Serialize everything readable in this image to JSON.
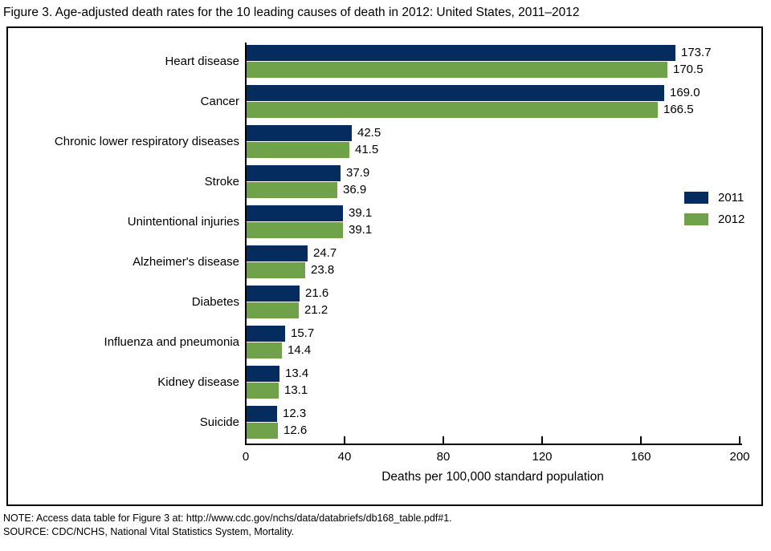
{
  "figure": {
    "title": "Figure 3. Age-adjusted death rates for the 10 leading causes of death in 2012: United States, 2011–2012",
    "note": "NOTE: Access data table for Figure 3 at: http://www.cdc.gov/nchs/data/databriefs/db168_table.pdf#1.",
    "source": "SOURCE: CDC/NCHS, National Vital Statistics System, Mortality."
  },
  "chart_data": {
    "type": "bar",
    "orientation": "horizontal",
    "title": "Figure 3. Age-adjusted death rates for the 10 leading causes of death in 2012: United States, 2011–2012",
    "categories": [
      "Heart disease",
      "Cancer",
      "Chronic lower respiratory diseases",
      "Stroke",
      "Unintentional injuries",
      "Alzheimer's disease",
      "Diabetes",
      "Influenza and pneumonia",
      "Kidney disease",
      "Suicide"
    ],
    "series": [
      {
        "name": "2011",
        "color": "#042c5e",
        "values": [
          173.7,
          169.0,
          42.5,
          37.9,
          39.1,
          24.7,
          21.6,
          15.7,
          13.4,
          12.3
        ]
      },
      {
        "name": "2012",
        "color": "#6fa24a",
        "values": [
          170.5,
          166.5,
          41.5,
          36.9,
          39.1,
          23.8,
          21.2,
          14.4,
          13.1,
          12.6
        ]
      }
    ],
    "xlabel": "Deaths per 100,000 standard population",
    "ylabel": "",
    "x_ticks": [
      0,
      40,
      80,
      120,
      160,
      200
    ],
    "xlim": [
      0,
      200
    ],
    "grid": false,
    "legend_position": "right-middle",
    "value_labels_shown": true,
    "axis_color": "#000000",
    "frame_color": "#000000"
  }
}
